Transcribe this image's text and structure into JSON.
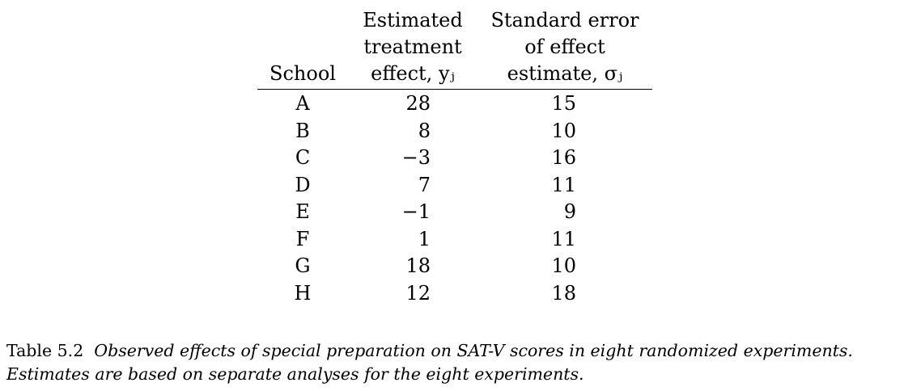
{
  "table": {
    "headers": {
      "school": [
        "School"
      ],
      "effect": [
        "Estimated",
        "treatment",
        "effect, yⱼ"
      ],
      "se": [
        "Standard error",
        "of effect",
        "estimate, σⱼ"
      ]
    },
    "rows": [
      {
        "school": "A",
        "effect": "28",
        "se": "15"
      },
      {
        "school": "B",
        "effect": "8",
        "se": "10"
      },
      {
        "school": "C",
        "effect": "−3",
        "se": "16"
      },
      {
        "school": "D",
        "effect": "7",
        "se": "11"
      },
      {
        "school": "E",
        "effect": "−1",
        "se": "9"
      },
      {
        "school": "F",
        "effect": "1",
        "se": "11"
      },
      {
        "school": "G",
        "effect": "18",
        "se": "10"
      },
      {
        "school": "H",
        "effect": "12",
        "se": "18"
      }
    ]
  },
  "caption": {
    "label": "Table 5.2",
    "line1": "Observed effects of special preparation on SAT-V scores in eight randomized experiments.",
    "line2": "Estimates are based on separate analyses for the eight experiments."
  }
}
